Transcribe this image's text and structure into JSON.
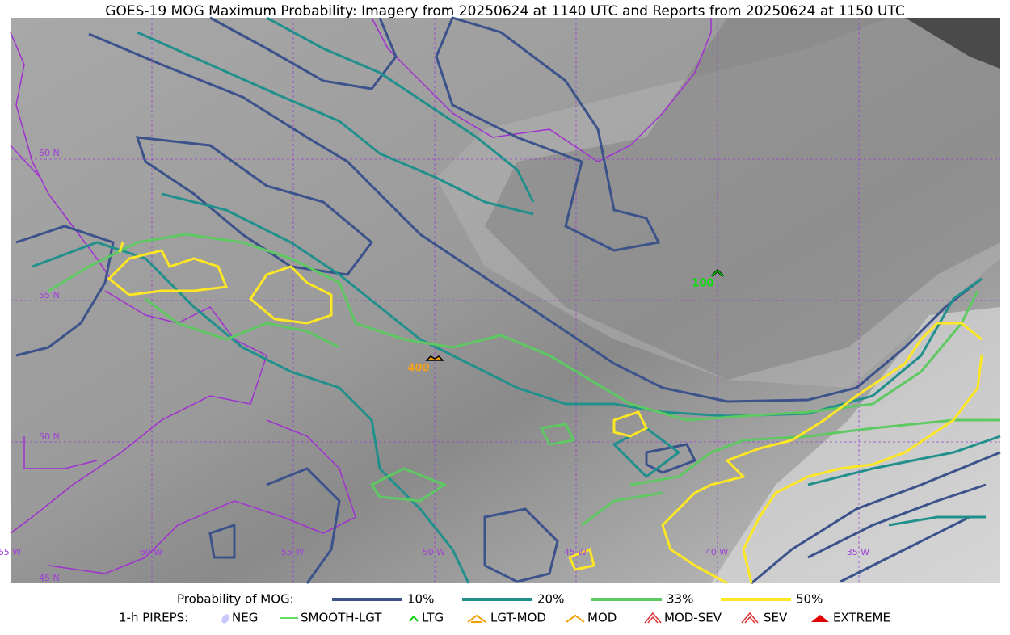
{
  "title": "GOES-19 MOG Maximum Probability: Imagery from 20250624 at 1140 UTC and Reports from 20250624 at 1150 UTC",
  "map": {
    "lat_labels": [
      "60 N",
      "55 N",
      "50 N",
      "45 N"
    ],
    "lon_labels": [
      "65 W",
      "60 W",
      "55 W",
      "50 W",
      "45 W",
      "40 W",
      "35 W"
    ],
    "pireps": [
      {
        "label": "100"
      },
      {
        "label": "400"
      }
    ]
  },
  "legend": {
    "probability_title": "Probability of MOG:",
    "probability_levels": [
      "10%",
      "20%",
      "33%",
      "50%"
    ],
    "pireps_title": "1-h PIREPS:",
    "pirep_types": [
      "NEG",
      "SMOOTH-LGT",
      "LTG",
      "LGT-MOD",
      "MOD",
      "MOD-SEV",
      "SEV",
      "EXTREME"
    ]
  }
}
